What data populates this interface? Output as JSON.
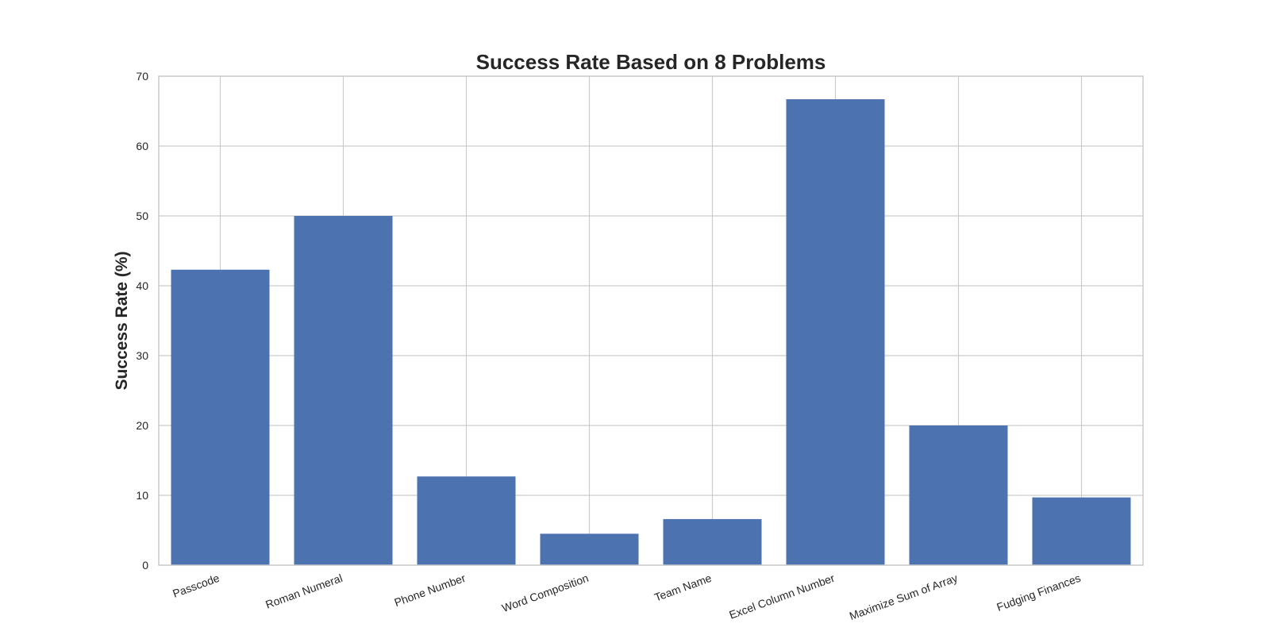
{
  "chart_data": {
    "type": "bar",
    "title": "Success Rate Based on 8 Problems",
    "xlabel": "",
    "ylabel": "Success Rate (%)",
    "ylim": [
      0,
      70
    ],
    "yticks": [
      0,
      10,
      20,
      30,
      40,
      50,
      60,
      70
    ],
    "categories": [
      "Passcode",
      "Roman Numeral",
      "Phone Number",
      "Word Composition",
      "Team Name",
      "Excel Column Number",
      "Maximize Sum of Array",
      "Fudging Finances"
    ],
    "values": [
      42.3,
      50.0,
      12.7,
      4.5,
      6.6,
      66.7,
      20.0,
      9.7
    ],
    "bar_color": "#4c72b0",
    "grid": true,
    "tick_label_rotation": "angled"
  }
}
